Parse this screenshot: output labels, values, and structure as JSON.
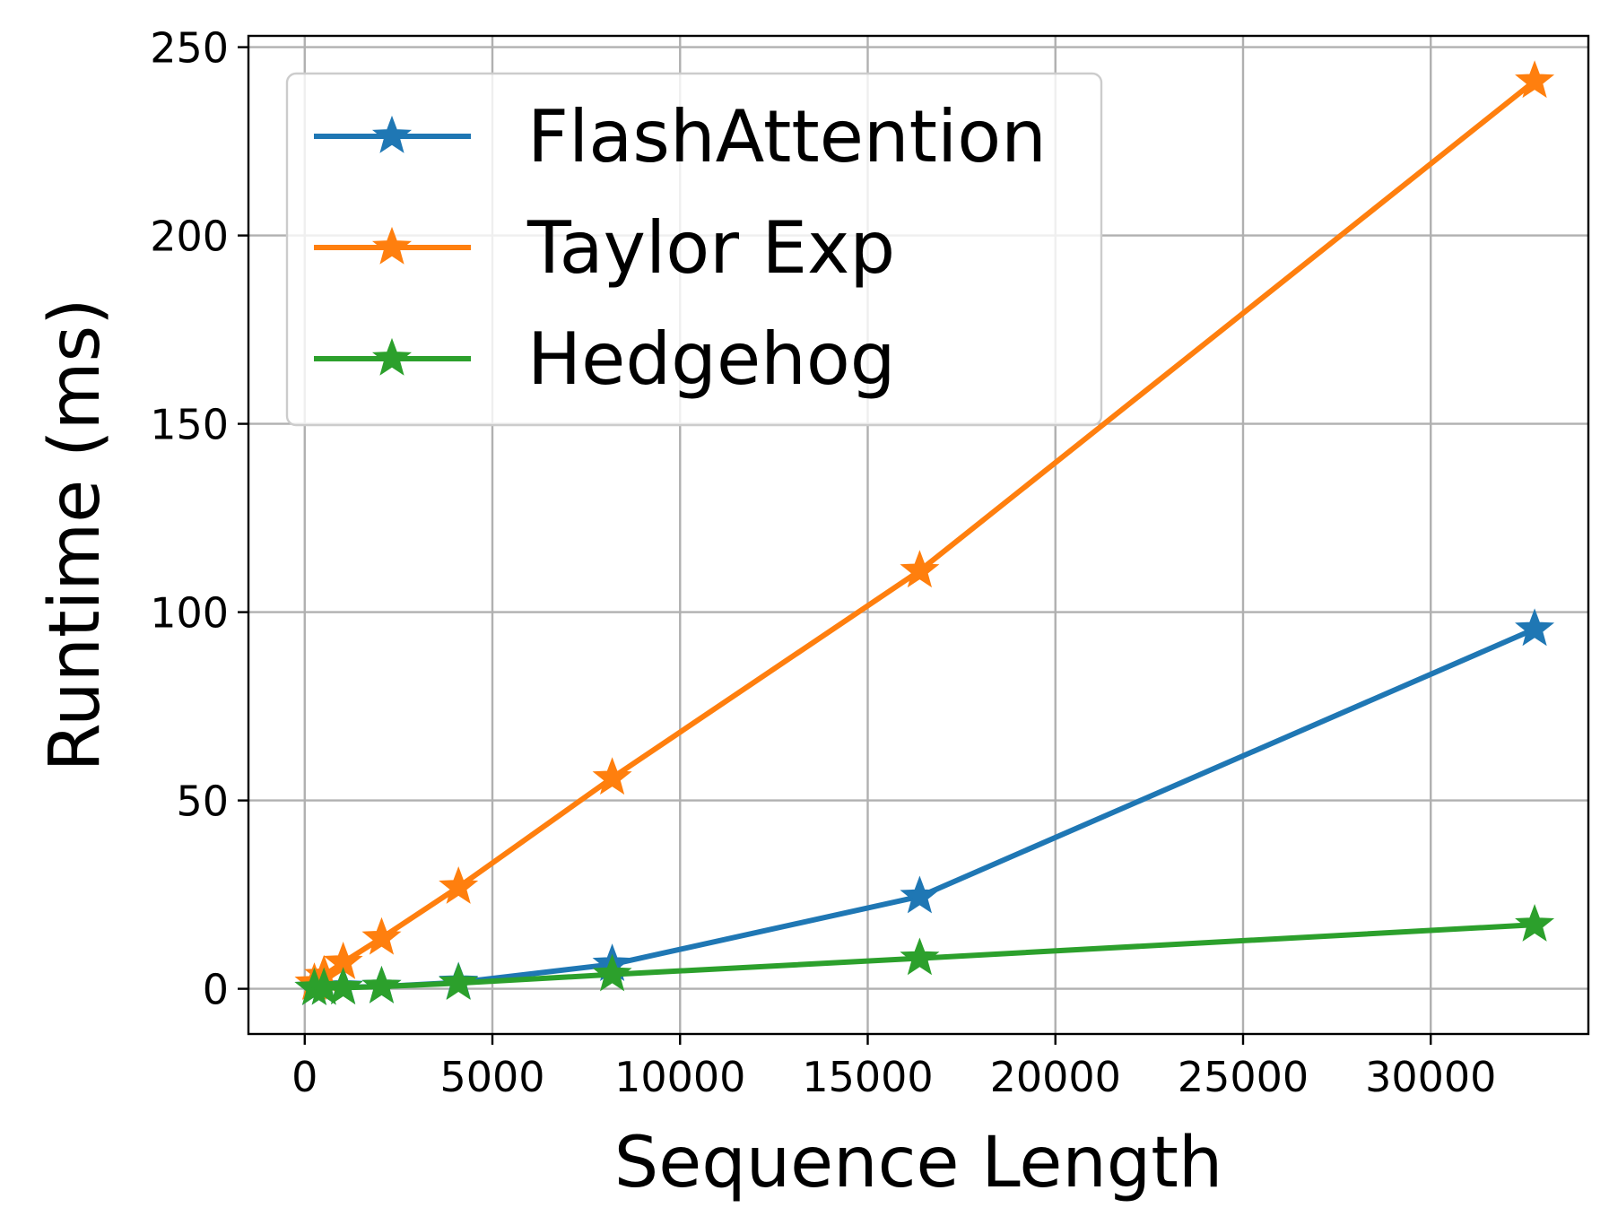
{
  "chart_data": {
    "type": "line",
    "xlabel": "Sequence Length",
    "ylabel": "Runtime (ms)",
    "xlim": [
      -1500,
      34200
    ],
    "ylim": [
      -12,
      253
    ],
    "xticks": [
      0,
      5000,
      10000,
      15000,
      20000,
      25000,
      30000
    ],
    "xtick_labels": [
      "0",
      "5000",
      "10000",
      "15000",
      "20000",
      "25000",
      "30000"
    ],
    "yticks": [
      0,
      50,
      100,
      150,
      200,
      250
    ],
    "ytick_labels": [
      "0",
      "50",
      "100",
      "150",
      "200",
      "250"
    ],
    "grid": true,
    "legend_position": "top-left",
    "marker": "star",
    "x": [
      256,
      512,
      1024,
      2048,
      4096,
      8192,
      16384,
      32768
    ],
    "series": [
      {
        "name": "FlashAttention",
        "color": "#1f77b4",
        "values": [
          0.1,
          0.2,
          0.4,
          0.6,
          1.7,
          6.5,
          24.5,
          95.5
        ]
      },
      {
        "name": "Taylor Exp",
        "color": "#ff7f0e",
        "values": [
          1.5,
          3.5,
          7.0,
          13.5,
          27.0,
          56.0,
          111.0,
          241.0
        ]
      },
      {
        "name": "Hedgehog",
        "color": "#2ca02c",
        "values": [
          0.1,
          0.2,
          0.3,
          0.6,
          1.5,
          3.8,
          8.1,
          17.0
        ]
      }
    ]
  }
}
